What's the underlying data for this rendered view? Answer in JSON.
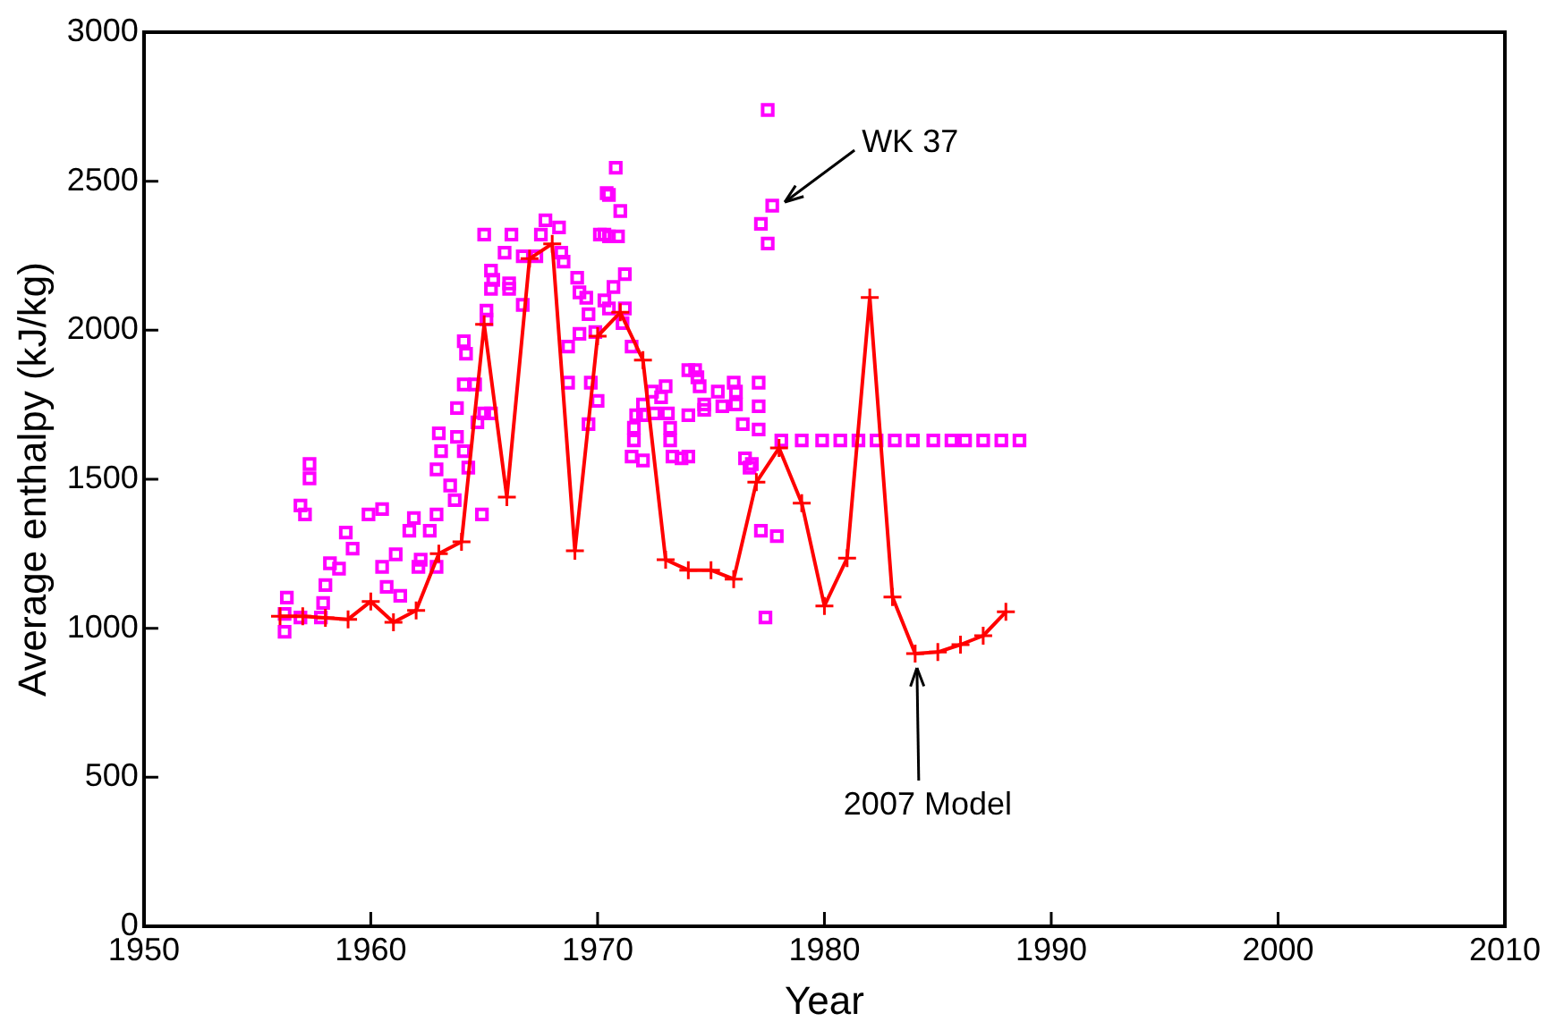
{
  "chart_data": {
    "type": "scatter",
    "xlabel": "Year",
    "ylabel": "Average enthalpy (kJ/kg)",
    "xlim": [
      1950,
      2010
    ],
    "xticks": [
      1950,
      1960,
      1970,
      1980,
      1990,
      2000,
      2010
    ],
    "ylim": [
      0,
      3000
    ],
    "yticks": [
      0,
      500,
      1000,
      1500,
      2000,
      2500,
      3000
    ],
    "grid": false,
    "legend": false,
    "series": [
      {
        "type": "scatter",
        "marker": "square",
        "color": "#ff00ff",
        "x": [
          1956.2,
          1956.3,
          1956.2,
          1956.9,
          1957.3,
          1957.3,
          1956.9,
          1957.1,
          1957.8,
          1957.9,
          1958.0,
          1958.2,
          1958.6,
          1958.9,
          1959.2,
          1959.9,
          1960.5,
          1960.5,
          1960.7,
          1961.3,
          1961.1,
          1961.7,
          1961.9,
          1962.2,
          1962.6,
          1962.1,
          1962.9,
          1962.9,
          1963.0,
          1963.1,
          1962.9,
          1963.5,
          1963.7,
          1963.8,
          1964.1,
          1964.3,
          1964.9,
          1963.8,
          1964.1,
          1964.6,
          1964.2,
          1964.1,
          1965.0,
          1965.3,
          1964.7,
          1965.1,
          1965.1,
          1965.3,
          1965.3,
          1965.4,
          1966.1,
          1966.1,
          1965.9,
          1965.0,
          1966.2,
          1966.7,
          1967.3,
          1966.7,
          1967.7,
          1968.3,
          1967.5,
          1968.4,
          1968.5,
          1969.1,
          1969.2,
          1969.5,
          1969.6,
          1969.9,
          1969.2,
          1968.7,
          1968.7,
          1969.7,
          1970.0,
          1969.6,
          1970.3,
          1970.4,
          1970.8,
          1970.5,
          1971.0,
          1970.1,
          1970.5,
          1970.9,
          1971.2,
          1970.7,
          1970.3,
          1970.5,
          1971.2,
          1971.1,
          1971.5,
          1972.4,
          1973.0,
          1972.8,
          1972.0,
          1972.0,
          1971.7,
          1972.5,
          1973.1,
          1973.2,
          1973.2,
          1971.6,
          1971.6,
          1971.5,
          1972.0,
          1973.3,
          1973.7,
          1974.0,
          1974.0,
          1974.0,
          1974.3,
          1974.4,
          1974.5,
          1974.7,
          1974.7,
          1975.3,
          1975.5,
          1976.0,
          1976.1,
          1976.1,
          1976.4,
          1977.1,
          1977.1,
          1977.1,
          1976.5,
          1976.7,
          1976.8,
          1977.2,
          1977.9,
          1977.4,
          1977.7,
          1977.2,
          1977.5,
          1977.5,
          1978.1,
          1979.0,
          1979.9,
          1980.7,
          1981.5,
          1982.3,
          1983.1,
          1983.9,
          1984.8,
          1985.6,
          1986.2,
          1987.0,
          1987.8,
          1988.6
        ],
        "values": [
          988,
          1103,
          1048,
          1036,
          1551,
          1503,
          1412,
          1382,
          1036,
          1085,
          1145,
          1218,
          1200,
          1321,
          1267,
          1382,
          1400,
          1206,
          1139,
          1109,
          1248,
          1327,
          1370,
          1230,
          1327,
          1206,
          1206,
          1382,
          1654,
          1594,
          1533,
          1479,
          1430,
          1642,
          1594,
          1539,
          1382,
          1739,
          1818,
          1818,
          1921,
          1963,
          1721,
          1721,
          1691,
          2036,
          2066,
          2139,
          2200,
          2169,
          2139,
          2157,
          2260,
          2321,
          2321,
          2248,
          2248,
          2085,
          2369,
          2345,
          2321,
          2260,
          2230,
          2176,
          2127,
          2109,
          2054,
          1994,
          1988,
          1945,
          1824,
          1824,
          1763,
          1685,
          2321,
          2460,
          2545,
          2454,
          2400,
          2321,
          2315,
          2315,
          2188,
          2145,
          2100,
          2073,
          2073,
          2024,
          1945,
          1794,
          1812,
          1775,
          1751,
          1715,
          1715,
          1721,
          1721,
          1673,
          1630,
          1673,
          1630,
          1576,
          1563,
          1576,
          1570,
          1576,
          1715,
          1866,
          1866,
          1842,
          1812,
          1751,
          1733,
          1794,
          1745,
          1824,
          1794,
          1751,
          1685,
          1824,
          1745,
          1667,
          1570,
          1539,
          1551,
          1327,
          1309,
          1036,
          2418,
          2357,
          2291,
          2739,
          1630,
          1630,
          1630,
          1630,
          1630,
          1630,
          1630,
          1630,
          1630,
          1630,
          1630,
          1630,
          1630,
          1630
        ]
      },
      {
        "type": "line",
        "marker": "cross",
        "line_style": "solid",
        "color": "#ff0000",
        "x": [
          1956,
          1957,
          1958,
          1959,
          1960,
          1961,
          1962,
          1963,
          1964,
          1965,
          1966,
          1967,
          1968,
          1969,
          1970,
          1971,
          1972,
          1973,
          1974,
          1975,
          1976,
          1977,
          1978,
          1979,
          1980,
          1981,
          1982,
          1983,
          1984,
          1985,
          1986,
          1987,
          1988
        ],
        "values": [
          1040,
          1040,
          1035,
          1030,
          1090,
          1020,
          1060,
          1250,
          1290,
          2020,
          1440,
          2240,
          2290,
          1260,
          1980,
          2060,
          1900,
          1230,
          1195,
          1195,
          1165,
          1490,
          1605,
          1420,
          1075,
          1235,
          2110,
          1105,
          915,
          920,
          945,
          975,
          1055
        ]
      }
    ],
    "annotations": [
      {
        "text": "WK 37",
        "x": 1977.7,
        "y": 2418
      },
      {
        "text": "2007 Model",
        "x": 1984,
        "y": 915
      }
    ]
  }
}
